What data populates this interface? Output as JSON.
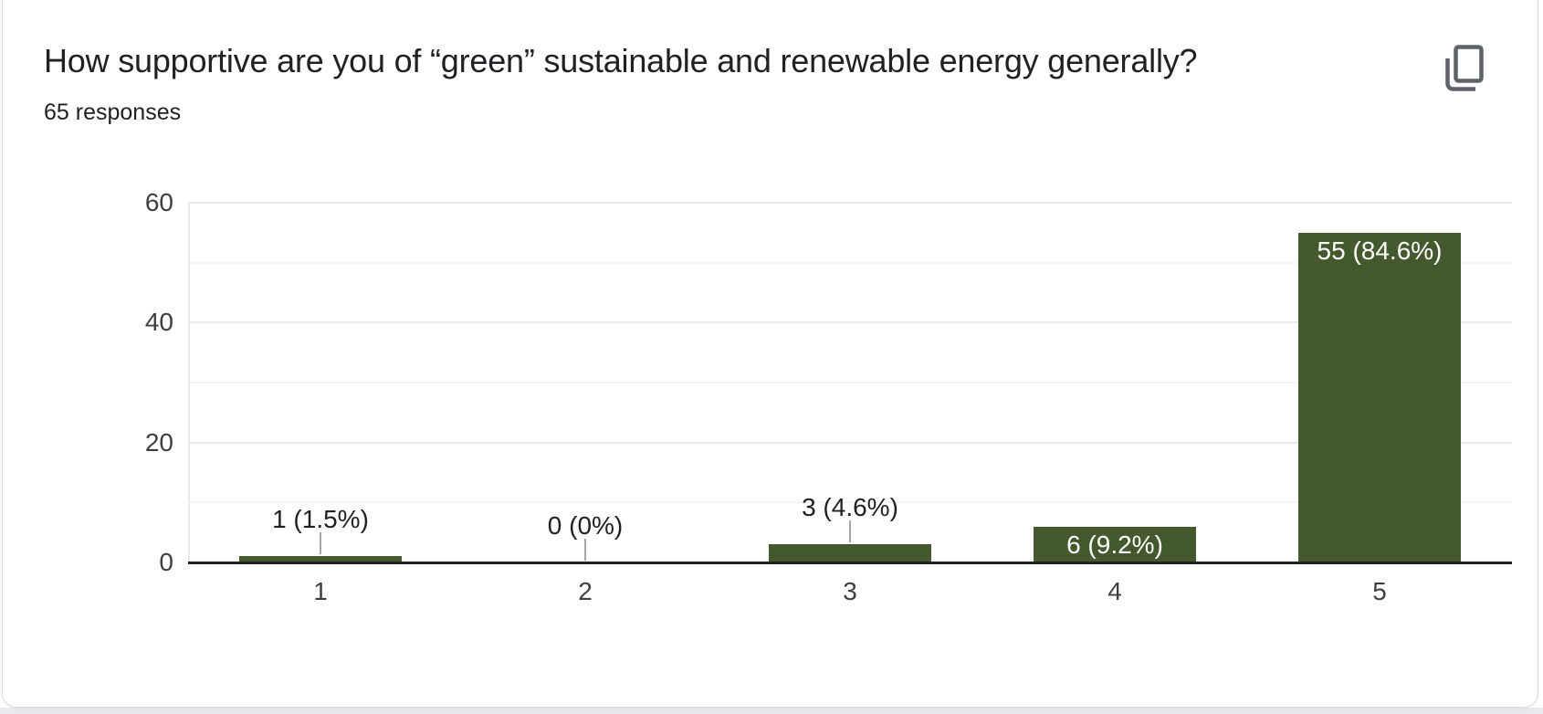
{
  "header": {
    "title": "How supportive are you of “green” sustainable and renewable energy generally?",
    "responses_count": "65 responses"
  },
  "icons": {
    "copy": "copy-icon"
  },
  "chart_data": {
    "type": "bar",
    "title": "How supportive are you of “green” sustainable and renewable energy generally?",
    "subtitle": "65 responses",
    "categories": [
      "1",
      "2",
      "3",
      "4",
      "5"
    ],
    "values": [
      1,
      0,
      3,
      6,
      55
    ],
    "data_labels": [
      "1 (1.5%)",
      "0 (0%)",
      "3 (4.6%)",
      "6 (9.2%)",
      "55 (84.6%)"
    ],
    "label_placement": [
      "outside",
      "outside",
      "outside",
      "inside",
      "inside"
    ],
    "total_responses": 65,
    "xlabel": "",
    "ylabel": "",
    "ylim": [
      0,
      60
    ],
    "yticks": [
      "0",
      "20",
      "40",
      "60"
    ],
    "minor_gridlines": [
      10,
      30,
      50
    ],
    "grid": true,
    "legend": "none",
    "colors": {
      "bar": "#45592e",
      "label_outside": "#202124",
      "label_inside": "#ffffff",
      "axis_text": "#3c4043",
      "title_text": "#202124",
      "baseline": "#212121",
      "gridline_major": "#e9e9e9",
      "gridline_minor": "#f5f5f5",
      "callout_line": "#a6a6a6",
      "icon": "#5f6368",
      "card_border": "#d9dbdf",
      "page_background": "#e9eaee"
    }
  }
}
